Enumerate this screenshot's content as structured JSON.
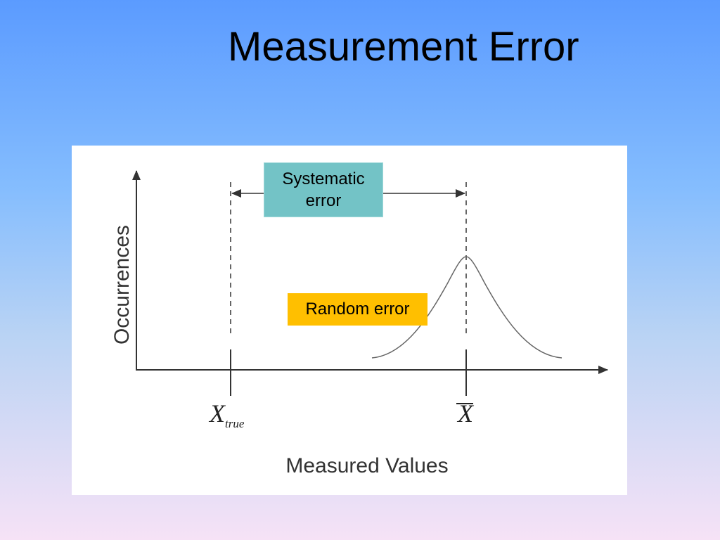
{
  "slide": {
    "title": "Measurement Error"
  },
  "figure": {
    "y_axis_label": "Occurrences",
    "x_axis_label": "Measured Values",
    "systematic_error_label": "Systematic\nerror",
    "random_error_label": "Random error",
    "true_value_symbol": "X",
    "true_value_subscript": "true",
    "mean_value_symbol": "X",
    "colors": {
      "systematic_box": "#73c3c6",
      "random_box": "#ffbf00",
      "lines": "#333333",
      "curve": "#666666"
    }
  }
}
